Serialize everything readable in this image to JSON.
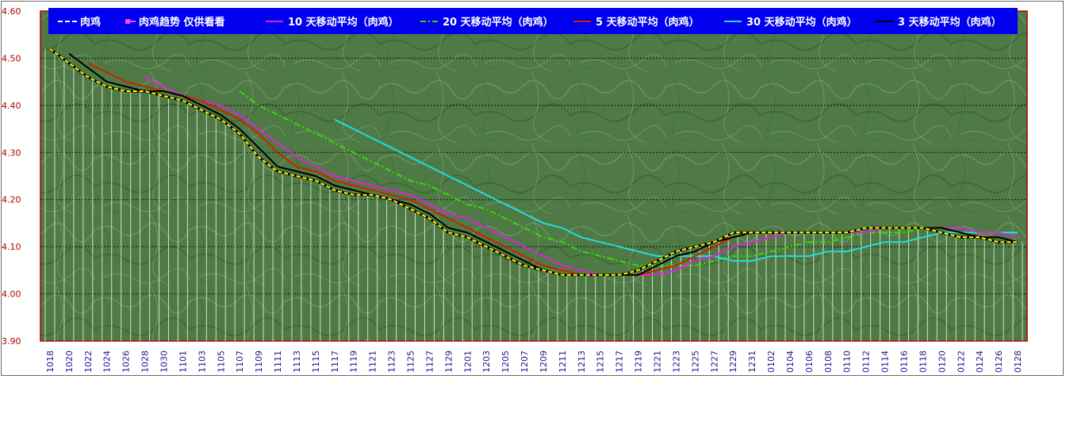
{
  "chart_data": {
    "type": "line",
    "y_ticks": [
      "4.60",
      "4.50",
      "4.40",
      "4.30",
      "4.20",
      "4.10",
      "4.00",
      "3.90"
    ],
    "ylim": [
      3.9,
      4.6
    ],
    "x_tick_labels": [
      "1018",
      "1020",
      "1022",
      "1024",
      "1026",
      "1028",
      "1030",
      "1101",
      "1103",
      "1105",
      "1107",
      "1109",
      "1111",
      "1113",
      "1115",
      "1117",
      "1119",
      "1121",
      "1123",
      "1125",
      "1127",
      "1129",
      "1201",
      "1203",
      "1205",
      "1207",
      "1209",
      "1211",
      "1213",
      "1215",
      "1217",
      "1219",
      "1221",
      "1223",
      "1225",
      "1227",
      "1229",
      "1231",
      "0102",
      "0104",
      "0106",
      "0108",
      "0110",
      "0112",
      "0114",
      "0116",
      "0118",
      "0120",
      "0122",
      "0124",
      "0126",
      "0128"
    ],
    "grid": "horizontal dotted",
    "legend_position": "top",
    "series": [
      {
        "name": "肉鸡",
        "color": "#ffff00",
        "style": "dashed-over-black",
        "values": [
          4.52,
          4.49,
          4.46,
          4.44,
          4.43,
          4.43,
          4.42,
          4.41,
          4.39,
          4.37,
          4.34,
          4.29,
          4.26,
          4.25,
          4.24,
          4.22,
          4.21,
          4.21,
          4.2,
          4.18,
          4.16,
          4.13,
          4.12,
          4.1,
          4.08,
          4.06,
          4.05,
          4.04,
          4.04,
          4.04,
          4.04,
          4.05,
          4.07,
          4.09,
          4.1,
          4.11,
          4.13,
          4.13,
          4.13,
          4.13,
          4.13,
          4.13,
          4.13,
          4.14,
          4.14,
          4.14,
          4.14,
          4.13,
          4.12,
          4.12,
          4.11,
          4.11
        ]
      },
      {
        "name": "肉鸡趋势   仅供看看",
        "color": "#ff44ff",
        "style": "marker",
        "values": []
      },
      {
        "name": "10 天移动平均（肉鸡）",
        "color": "#dd22dd",
        "values": [
          null,
          null,
          null,
          null,
          null,
          4.46,
          4.44,
          4.42,
          4.41,
          4.4,
          4.38,
          4.35,
          4.32,
          4.29,
          4.27,
          4.25,
          4.24,
          4.23,
          4.22,
          4.21,
          4.19,
          4.17,
          4.16,
          4.14,
          4.12,
          4.1,
          4.08,
          4.06,
          4.05,
          4.04,
          4.04,
          4.04,
          4.04,
          4.05,
          4.07,
          4.08,
          4.1,
          4.11,
          4.12,
          4.13,
          4.13,
          4.13,
          4.13,
          4.13,
          4.14,
          4.14,
          4.14,
          4.14,
          4.14,
          4.13,
          4.13,
          4.12
        ]
      },
      {
        "name": "20 天移动平均（肉鸡）",
        "color": "#33dd00",
        "style": "dash-dot",
        "values": [
          null,
          null,
          null,
          null,
          null,
          null,
          null,
          null,
          null,
          null,
          4.43,
          4.4,
          4.38,
          4.36,
          4.34,
          4.32,
          4.3,
          4.28,
          4.26,
          4.24,
          4.23,
          4.21,
          4.19,
          4.18,
          4.16,
          4.14,
          4.12,
          4.11,
          4.09,
          4.08,
          4.07,
          4.06,
          4.06,
          4.06,
          4.06,
          4.07,
          4.08,
          4.08,
          4.09,
          4.1,
          4.11,
          4.11,
          4.12,
          4.13,
          4.13,
          4.13,
          4.14,
          4.14,
          4.14,
          4.13,
          4.13,
          4.13
        ]
      },
      {
        "name": "5 天移动平均（肉鸡）",
        "color": "#cc2200",
        "values": [
          null,
          null,
          4.49,
          4.47,
          4.45,
          4.44,
          4.43,
          4.42,
          4.41,
          4.39,
          4.37,
          4.34,
          4.3,
          4.27,
          4.26,
          4.24,
          4.23,
          4.22,
          4.21,
          4.2,
          4.18,
          4.16,
          4.14,
          4.12,
          4.1,
          4.08,
          4.06,
          4.05,
          4.04,
          4.04,
          4.04,
          4.04,
          4.05,
          4.06,
          4.08,
          4.1,
          4.12,
          4.13,
          4.13,
          4.13,
          4.13,
          4.13,
          4.13,
          4.14,
          4.14,
          4.14,
          4.14,
          4.14,
          4.13,
          4.12,
          4.12,
          4.11
        ]
      },
      {
        "name": "30 天移动平均（肉鸡）",
        "color": "#22dddd",
        "values": [
          null,
          null,
          null,
          null,
          null,
          null,
          null,
          null,
          null,
          null,
          null,
          null,
          null,
          null,
          null,
          4.37,
          4.35,
          4.33,
          4.31,
          4.29,
          4.27,
          4.25,
          4.23,
          4.21,
          4.19,
          4.17,
          4.15,
          4.14,
          4.12,
          4.11,
          4.1,
          4.09,
          4.08,
          4.08,
          4.08,
          4.08,
          4.07,
          4.07,
          4.08,
          4.08,
          4.08,
          4.09,
          4.09,
          4.1,
          4.11,
          4.11,
          4.12,
          4.13,
          4.13,
          4.13,
          4.13,
          4.13
        ]
      },
      {
        "name": "3 天移动平均（肉鸡）",
        "color": "#000000",
        "values": [
          null,
          4.51,
          4.48,
          4.45,
          4.44,
          4.43,
          4.43,
          4.42,
          4.4,
          4.38,
          4.35,
          4.31,
          4.27,
          4.26,
          4.25,
          4.23,
          4.22,
          4.21,
          4.2,
          4.19,
          4.17,
          4.14,
          4.13,
          4.11,
          4.09,
          4.07,
          4.05,
          4.04,
          4.04,
          4.04,
          4.04,
          4.04,
          4.06,
          4.08,
          4.09,
          4.11,
          4.12,
          4.13,
          4.13,
          4.13,
          4.13,
          4.13,
          4.13,
          4.14,
          4.14,
          4.14,
          4.14,
          4.14,
          4.13,
          4.12,
          4.12,
          4.11
        ]
      }
    ]
  }
}
